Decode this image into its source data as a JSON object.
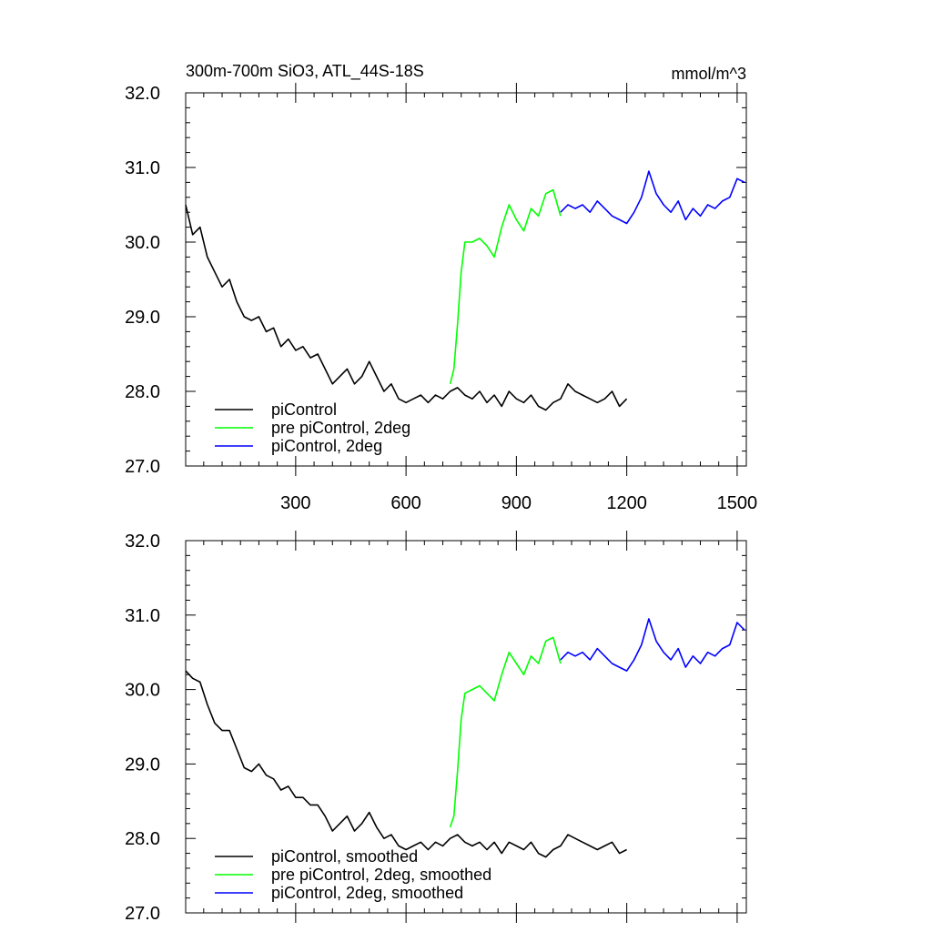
{
  "header": {
    "title": "300m-700m SiO3, ATL_44S-18S",
    "units": "mmol/m^3"
  },
  "chart_data": [
    {
      "type": "line",
      "title": "300m-700m SiO3, ATL_44S-18S",
      "units": "mmol/m^3",
      "xlim": [
        1,
        1525
      ],
      "ylim": [
        27.0,
        32.0
      ],
      "x_ticks": [
        300,
        600,
        900,
        1200,
        1500
      ],
      "x_tick_labels": [
        "300",
        "600",
        "900",
        "1200",
        "1500"
      ],
      "y_ticks": [
        27.0,
        28.0,
        29.0,
        30.0,
        31.0,
        32.0
      ],
      "y_tick_labels": [
        "27.0",
        "28.0",
        "29.0",
        "30.0",
        "31.0",
        "32.0"
      ],
      "legend_position": "bottom-left",
      "series": [
        {
          "name": "piControl",
          "color": "#000000",
          "x": [
            1,
            20,
            40,
            60,
            80,
            100,
            120,
            140,
            160,
            180,
            200,
            220,
            240,
            260,
            280,
            300,
            320,
            340,
            360,
            380,
            400,
            420,
            440,
            460,
            480,
            500,
            520,
            540,
            560,
            580,
            600,
            620,
            640,
            660,
            680,
            700,
            720,
            740,
            760,
            780,
            800,
            820,
            840,
            860,
            880,
            900,
            920,
            940,
            960,
            980,
            1000,
            1020,
            1040,
            1060,
            1080,
            1100,
            1120,
            1140,
            1160,
            1180,
            1200
          ],
          "values": [
            30.5,
            30.1,
            30.2,
            29.8,
            29.6,
            29.4,
            29.5,
            29.2,
            29.0,
            28.95,
            29.0,
            28.8,
            28.85,
            28.6,
            28.7,
            28.55,
            28.6,
            28.45,
            28.5,
            28.3,
            28.1,
            28.2,
            28.3,
            28.1,
            28.2,
            28.4,
            28.2,
            28.0,
            28.1,
            27.9,
            27.85,
            27.9,
            27.95,
            27.85,
            27.95,
            27.9,
            28.0,
            28.05,
            27.95,
            27.9,
            28.0,
            27.85,
            27.95,
            27.8,
            28.0,
            27.9,
            27.85,
            27.95,
            27.8,
            27.75,
            27.85,
            27.9,
            28.1,
            28.0,
            27.95,
            27.9,
            27.85,
            27.9,
            28.0,
            27.8,
            27.9
          ]
        },
        {
          "name": "pre piControl, 2deg",
          "color": "#00ff00",
          "x": [
            720,
            730,
            740,
            750,
            760,
            780,
            800,
            820,
            840,
            860,
            880,
            900,
            920,
            940,
            960,
            980,
            1000,
            1020
          ],
          "values": [
            28.1,
            28.3,
            28.9,
            29.6,
            30.0,
            30.0,
            30.05,
            29.95,
            29.8,
            30.2,
            30.5,
            30.3,
            30.15,
            30.45,
            30.35,
            30.65,
            30.7,
            30.35
          ]
        },
        {
          "name": "piControl, 2deg",
          "color": "#0000ff",
          "x": [
            1020,
            1040,
            1060,
            1080,
            1100,
            1120,
            1140,
            1160,
            1180,
            1200,
            1220,
            1240,
            1260,
            1280,
            1300,
            1320,
            1340,
            1360,
            1380,
            1400,
            1420,
            1440,
            1460,
            1480,
            1500,
            1520
          ],
          "values": [
            30.4,
            30.5,
            30.45,
            30.5,
            30.4,
            30.55,
            30.45,
            30.35,
            30.3,
            30.25,
            30.4,
            30.6,
            30.95,
            30.65,
            30.5,
            30.4,
            30.55,
            30.3,
            30.45,
            30.35,
            30.5,
            30.45,
            30.55,
            30.6,
            30.85,
            30.8
          ]
        }
      ]
    },
    {
      "type": "line",
      "xlim": [
        1,
        1525
      ],
      "ylim": [
        27.0,
        32.0
      ],
      "x_ticks": [
        300,
        600,
        900,
        1200,
        1500
      ],
      "y_ticks": [
        27.0,
        28.0,
        29.0,
        30.0,
        31.0,
        32.0
      ],
      "y_tick_labels": [
        "27.0",
        "28.0",
        "29.0",
        "30.0",
        "31.0",
        "32.0"
      ],
      "legend_position": "bottom-left",
      "series": [
        {
          "name": "piControl, smoothed",
          "color": "#000000",
          "x": [
            1,
            20,
            40,
            60,
            80,
            100,
            120,
            140,
            160,
            180,
            200,
            220,
            240,
            260,
            280,
            300,
            320,
            340,
            360,
            380,
            400,
            420,
            440,
            460,
            480,
            500,
            520,
            540,
            560,
            580,
            600,
            620,
            640,
            660,
            680,
            700,
            720,
            740,
            760,
            780,
            800,
            820,
            840,
            860,
            880,
            900,
            920,
            940,
            960,
            980,
            1000,
            1020,
            1040,
            1060,
            1080,
            1100,
            1120,
            1140,
            1160,
            1180,
            1200
          ],
          "values": [
            30.25,
            30.15,
            30.1,
            29.8,
            29.55,
            29.45,
            29.45,
            29.2,
            28.95,
            28.9,
            29.0,
            28.85,
            28.8,
            28.65,
            28.7,
            28.55,
            28.55,
            28.45,
            28.45,
            28.3,
            28.1,
            28.2,
            28.3,
            28.1,
            28.2,
            28.35,
            28.15,
            28.0,
            28.05,
            27.9,
            27.85,
            27.9,
            27.95,
            27.85,
            27.95,
            27.9,
            28.0,
            28.05,
            27.95,
            27.9,
            27.95,
            27.85,
            27.95,
            27.8,
            27.95,
            27.9,
            27.85,
            27.95,
            27.8,
            27.75,
            27.85,
            27.9,
            28.05,
            28.0,
            27.95,
            27.9,
            27.85,
            27.9,
            27.95,
            27.8,
            27.85
          ]
        },
        {
          "name": "pre piControl, 2deg, smoothed",
          "color": "#00ff00",
          "x": [
            720,
            730,
            740,
            750,
            760,
            780,
            800,
            820,
            840,
            860,
            880,
            900,
            920,
            940,
            960,
            980,
            1000,
            1020
          ],
          "values": [
            28.15,
            28.3,
            28.9,
            29.6,
            29.95,
            30.0,
            30.05,
            29.95,
            29.85,
            30.2,
            30.5,
            30.35,
            30.2,
            30.45,
            30.35,
            30.65,
            30.7,
            30.35
          ]
        },
        {
          "name": "piControl, 2deg, smoothed",
          "color": "#0000ff",
          "x": [
            1020,
            1040,
            1060,
            1080,
            1100,
            1120,
            1140,
            1160,
            1180,
            1200,
            1220,
            1240,
            1260,
            1280,
            1300,
            1320,
            1340,
            1360,
            1380,
            1400,
            1420,
            1440,
            1460,
            1480,
            1500,
            1520
          ],
          "values": [
            30.4,
            30.5,
            30.45,
            30.5,
            30.4,
            30.55,
            30.45,
            30.35,
            30.3,
            30.25,
            30.4,
            30.6,
            30.95,
            30.65,
            30.5,
            30.4,
            30.55,
            30.3,
            30.45,
            30.35,
            30.5,
            30.45,
            30.55,
            30.6,
            30.9,
            30.8
          ]
        }
      ]
    }
  ]
}
